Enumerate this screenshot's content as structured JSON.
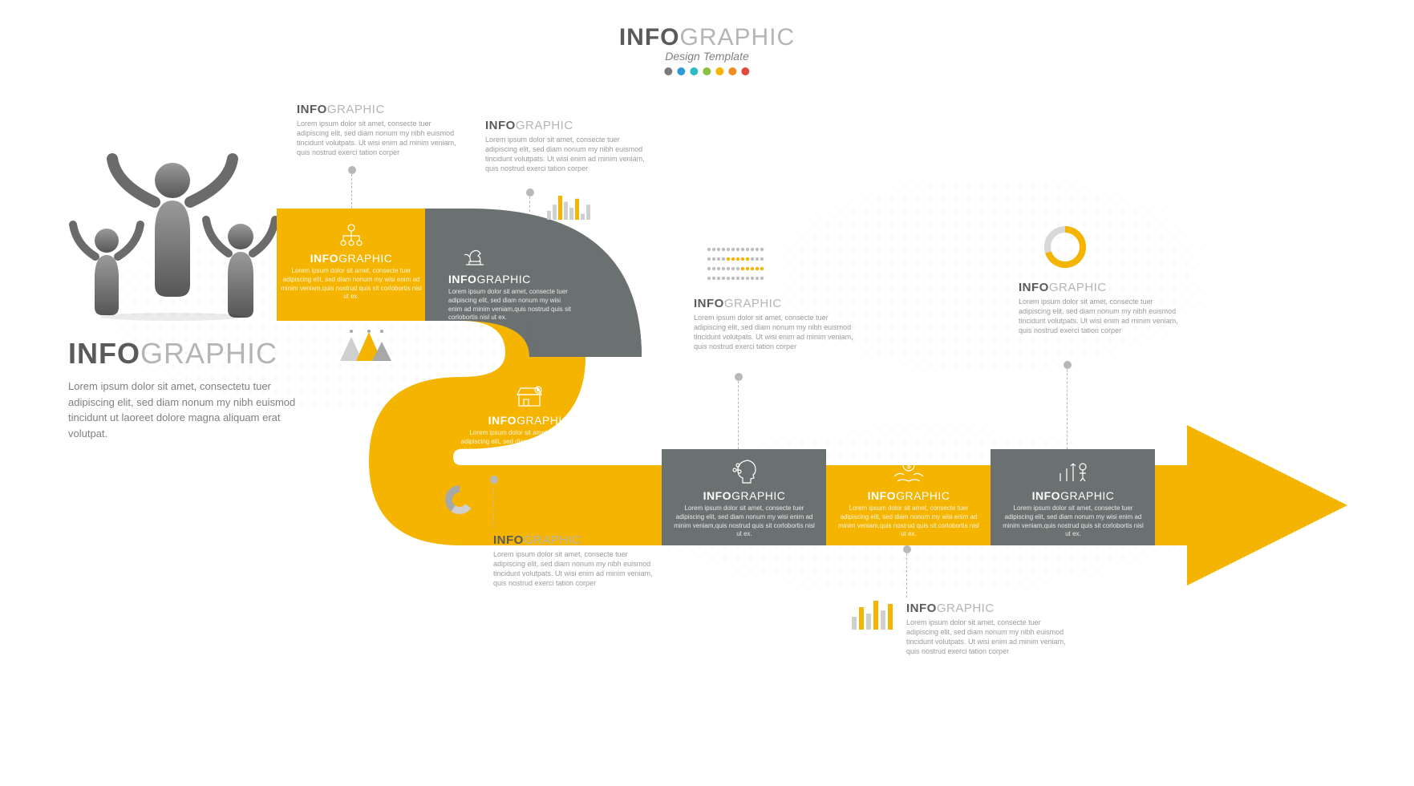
{
  "colors": {
    "yellow": "#f4b400",
    "grey": "#6b7070",
    "text_dark": "#5a5a5a",
    "text_light": "#b5b5b5",
    "header_dots": [
      "#7a7a7a",
      "#2e9bd6",
      "#2fb8c5",
      "#8bbf3f",
      "#f4b400",
      "#ef8d22",
      "#e04a3f"
    ]
  },
  "header": {
    "title_bold": "INFO",
    "title_light": "GRAPHIC",
    "subtitle": "Design Template"
  },
  "hero": {
    "title_bold": "INFO",
    "title_light": "GRAPHIC",
    "body": "Lorem ipsum dolor sit amet, consectetu tuer adipiscing elit, sed diam nonum my nibh euismod tincidunt ut laoreet dolore magna aliquam erat volutpat."
  },
  "lorem_small": "Lorem ipsum dolor sit amet, consecte tuer adipiscing elit, sed diam nonum my nibh euismod tincidunt volutpats. Ut wisi enim ad minim veniam, quis nostrud exerci tation corper",
  "lorem_tight": "Lorem ipsum dolor sit amet, consecte tuer adipiscing elit, sed diam nonum my wisi enim ad minim veniam,quis nostrud quis sit corlobortis nisl ut ex.",
  "segments": [
    {
      "id": "seg1",
      "on_color": "yellow",
      "icon": "org-chart",
      "title_bold": "INFO",
      "title_light": "GRAPHIC",
      "callout": {
        "pos": "above",
        "icon": null
      }
    },
    {
      "id": "seg2",
      "on_color": "grey",
      "icon": "chess",
      "title_bold": "INFO",
      "title_light": "GRAPHIC",
      "callout": {
        "pos": "above",
        "icon": "bar-chart"
      }
    },
    {
      "id": "seg3",
      "on_color": "yellow",
      "icon": "store",
      "title_bold": "INFO",
      "title_light": "GRAPHIC",
      "callout": {
        "pos": "left-below",
        "icon": "mountains"
      },
      "second_callout": {
        "pos": "below",
        "icon": "donut"
      }
    },
    {
      "id": "seg4",
      "on_color": "grey",
      "icon": "head-tree",
      "title_bold": "INFO",
      "title_light": "GRAPHIC",
      "callout": {
        "pos": "above",
        "icon": "abacus"
      }
    },
    {
      "id": "seg5",
      "on_color": "yellow",
      "icon": "hands-money",
      "title_bold": "INFO",
      "title_light": "GRAPHIC",
      "callout": {
        "pos": "below",
        "icon": "column-chart"
      }
    },
    {
      "id": "seg6",
      "on_color": "grey",
      "icon": "growth-person",
      "title_bold": "INFO",
      "title_light": "GRAPHIC",
      "callout": {
        "pos": "above",
        "icon": "ring-chart"
      }
    }
  ],
  "mini_charts": {
    "bar": {
      "values": [
        3,
        5,
        8,
        6,
        4,
        7,
        2,
        5
      ],
      "colors": [
        "#cfcfcf",
        "#cfcfcf",
        "#f4b400",
        "#cfcfcf",
        "#cfcfcf",
        "#f4b400",
        "#cfcfcf",
        "#cfcfcf"
      ]
    },
    "cols": {
      "values": [
        4,
        7,
        5,
        9,
        6,
        8
      ],
      "colors": [
        "#cfcfcf",
        "#f4b400",
        "#cfcfcf",
        "#f4b400",
        "#cfcfcf",
        "#f4b400"
      ]
    },
    "donut": {
      "slices": [
        35,
        25,
        40
      ],
      "colors": [
        "#f4b400",
        "#cfcfcf",
        "#a8a8a8"
      ]
    },
    "ring": {
      "percent": 70,
      "fg": "#f4b400",
      "bg": "#d8d8d8"
    },
    "mountains": {
      "colors": [
        "#cfcfcf",
        "#f4b400",
        "#a8a8a8"
      ]
    }
  }
}
